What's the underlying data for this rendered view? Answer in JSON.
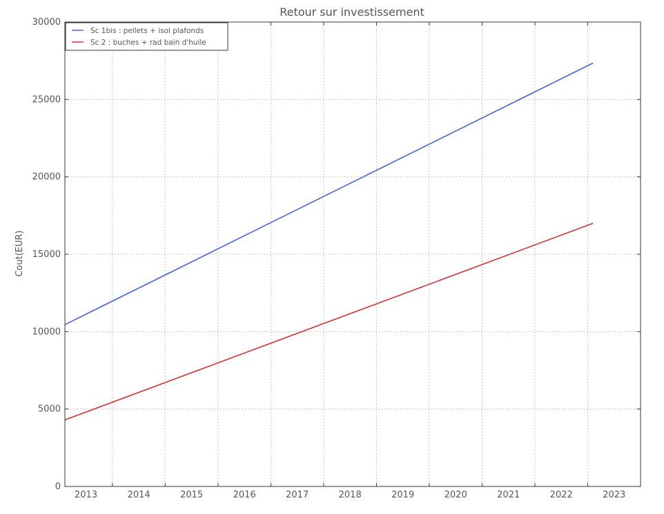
{
  "chart_data": {
    "type": "line",
    "title": "Retour sur investissement",
    "xlabel": "",
    "ylabel": "Cout(EUR)",
    "xlim": [
      2012.6,
      2023.5
    ],
    "ylim": [
      0,
      30000
    ],
    "x_ticks": [
      "2013",
      "2014",
      "2015",
      "2016",
      "2017",
      "2018",
      "2019",
      "2020",
      "2021",
      "2022",
      "2023"
    ],
    "y_ticks": [
      "0",
      "5000",
      "10000",
      "15000",
      "20000",
      "25000",
      "30000"
    ],
    "grid": true,
    "legend_position": "top-left",
    "series": [
      {
        "name": "Sc 1bis : pellets + isol plafonds",
        "color": "#4466cc",
        "x": [
          2012.6,
          2022.6
        ],
        "y": [
          10450,
          27350
        ]
      },
      {
        "name": "Sc 2 : buches + rad bain d'huile",
        "color": "#cc3333",
        "x": [
          2012.6,
          2022.6
        ],
        "y": [
          4300,
          17000
        ]
      }
    ]
  }
}
